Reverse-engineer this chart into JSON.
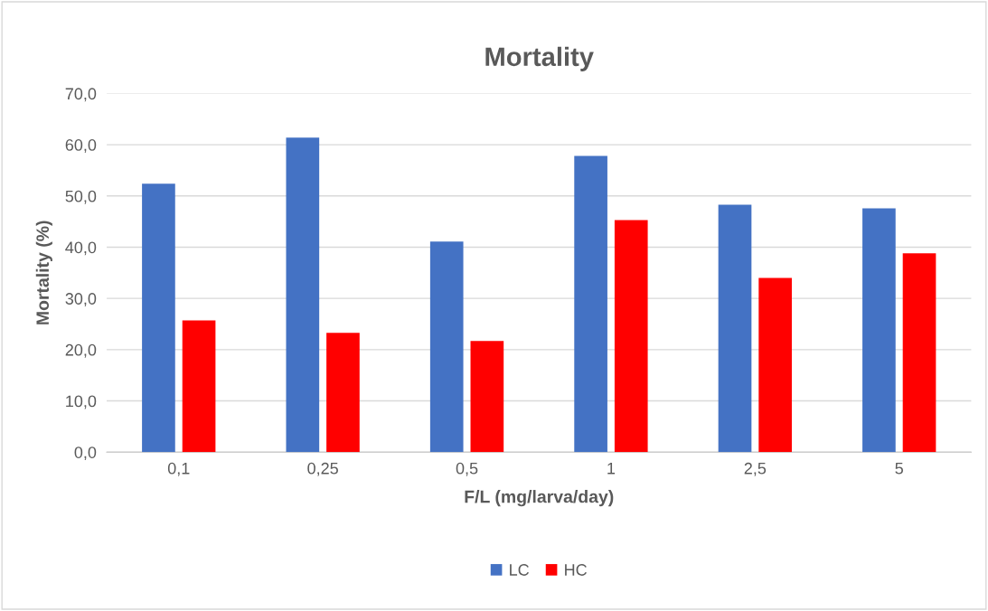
{
  "chart_data": {
    "type": "bar",
    "title": "Mortality",
    "xlabel": "F/L (mg/larva/day)",
    "ylabel": "Mortality (%)",
    "categories": [
      "0,1",
      "0,25",
      "0,5",
      "1",
      "2,5",
      "5"
    ],
    "series": [
      {
        "name": "LC",
        "color": "#4472c4",
        "values": [
          52.4,
          61.4,
          41.1,
          57.8,
          48.3,
          47.6
        ]
      },
      {
        "name": "HC",
        "color": "#ff0000",
        "values": [
          25.7,
          23.3,
          21.7,
          45.3,
          34.0,
          38.8
        ]
      }
    ],
    "ylim": [
      0,
      70
    ],
    "yticks": [
      {
        "value": 0,
        "label": "0,0"
      },
      {
        "value": 10,
        "label": "10,0"
      },
      {
        "value": 20,
        "label": "20,0"
      },
      {
        "value": 30,
        "label": "30,0"
      },
      {
        "value": 40,
        "label": "40,0"
      },
      {
        "value": 50,
        "label": "50,0"
      },
      {
        "value": 60,
        "label": "60,0"
      },
      {
        "value": 70,
        "label": "70,0"
      }
    ],
    "grid": "y",
    "legend": "bottom"
  }
}
